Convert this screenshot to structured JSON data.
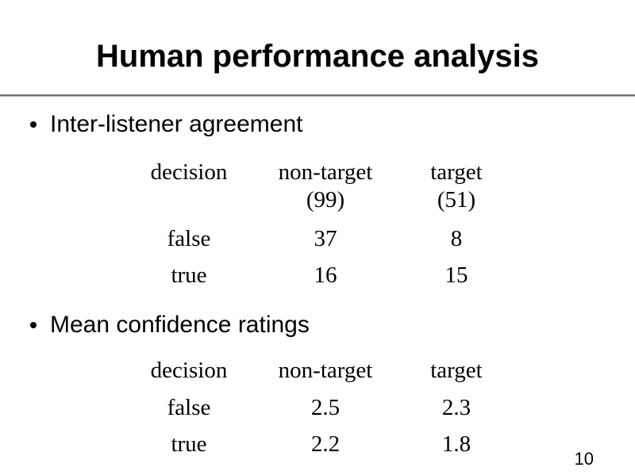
{
  "slide": {
    "title": "Human performance analysis",
    "page_number": "10",
    "bullets": [
      {
        "label": "Inter-listener agreement"
      },
      {
        "label": "Mean confidence ratings"
      }
    ],
    "colors": {
      "background": "#ffffff",
      "text": "#000000",
      "rule_top": "#707070",
      "rule_bottom": "#b8b8b8"
    }
  },
  "tables": {
    "agreement": {
      "columns": [
        {
          "label": "decision",
          "sub": ""
        },
        {
          "label": "non-target",
          "sub": "(99)"
        },
        {
          "label": "target",
          "sub": "(51)"
        }
      ],
      "rows": [
        [
          "false",
          "37",
          "8"
        ],
        [
          "true",
          "16",
          "15"
        ]
      ]
    },
    "confidence": {
      "columns": [
        {
          "label": "decision"
        },
        {
          "label": "non-target"
        },
        {
          "label": "target"
        }
      ],
      "rows": [
        [
          "false",
          "2.5",
          "2.3"
        ],
        [
          "true",
          "2.2",
          "1.8"
        ]
      ]
    }
  }
}
